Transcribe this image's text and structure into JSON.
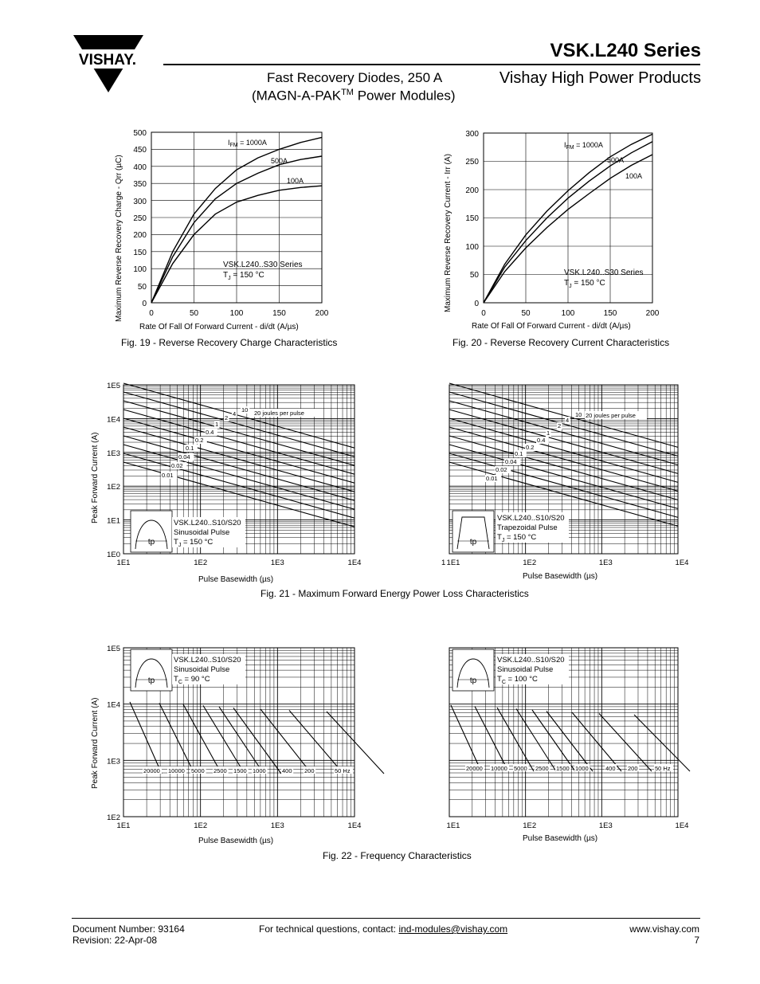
{
  "header": {
    "logo_text": "VISHAY.",
    "series_title": "VSK.L240 Series",
    "subtitle_line1": "Fast Recovery Diodes, 250 A",
    "subtitle_line2_pre": "(MAGN-A-PAK",
    "subtitle_tm": "TM",
    "subtitle_line2_post": " Power Modules)",
    "brand_products": "Vishay High Power Products"
  },
  "figures": {
    "fig19": {
      "caption": "Fig. 19 - Reverse Recovery Charge Characteristics",
      "ylabel": "Maximum Reverse Recovery Charge - Qrr (µC)",
      "xlabel": "Rate Of Fall Of Forward Current - di/dt (A/µs)",
      "note_line1": "VSK.L240..S30 Series",
      "note_line2_pre": "T",
      "note_line2_sub": "J",
      "note_line2_post": " = 150 °C",
      "curve_label_top_pre": "I",
      "curve_label_top_sub": "FM",
      "curve_label_top_post": " = 1000A",
      "curve_label_mid": "500A",
      "curve_label_low": "100A"
    },
    "fig20": {
      "caption": "Fig. 20 - Reverse Recovery Current Characteristics",
      "ylabel": "Maximum Reverse Recovery Current - Irr (A)",
      "xlabel": "Rate Of Fall Of Forward Current - di/dt (A/µs)",
      "note_line1": "VSK.L240..S30 Series",
      "note_line2_pre": "T",
      "note_line2_sub": "J",
      "note_line2_post": " = 150 °C",
      "curve_label_top_pre": "I",
      "curve_label_top_sub": "FM",
      "curve_label_top_post": " = 1000A",
      "curve_label_mid": "500A",
      "curve_label_low": "100A"
    },
    "fig21": {
      "caption": "Fig. 21 - Maximum Forward Energy Power Loss Characteristics",
      "ylabel": "Peak Forward Current (A)",
      "xlabel": "Pulse Basewidth (µs)",
      "left_note1": "VSK.L240..S10/S20",
      "left_note2": "Sinusoidal Pulse",
      "left_note3_pre": "T",
      "left_note3_sub": "J",
      "left_note3_post": " = 150 °C",
      "right_note1": "VSK.L240..S10/S20",
      "right_note2": "Trapezoidal Pulse",
      "right_note3_pre": "T",
      "right_note3_sub": "J",
      "right_note3_post": " = 150 °C",
      "pulse_label": "tp",
      "joules_label": "20 joules per pulse",
      "energy_labels": [
        "0.01",
        "0.02",
        "0.04",
        "0.1",
        "0.2",
        "0.4",
        "1",
        "2",
        "4",
        "10"
      ],
      "right_x_prefix": "1"
    },
    "fig22": {
      "caption": "Fig. 22 - Frequency Characteristics",
      "ylabel": "Peak Forward Current (A)",
      "xlabel": "Pulse Basewidth (µs)",
      "left_note1": "VSK.L240..S10/S20",
      "left_note2": "Sinusoidal Pulse",
      "left_note3_pre": "T",
      "left_note3_sub": "C",
      "left_note3_post": " = 90 °C",
      "right_note1": "VSK.L240..S10/S20",
      "right_note2": "Sinusoidal Pulse",
      "right_note3_pre": "T",
      "right_note3_sub": "C",
      "right_note3_post": " = 100 °C",
      "pulse_label": "tp",
      "freq_labels": [
        "20000",
        "10000",
        "5000",
        "2500",
        "1500",
        "1000",
        "400",
        "200",
        "50 Hz"
      ]
    }
  },
  "footer": {
    "doc_number": "Document Number: 93164",
    "revision": "Revision: 22-Apr-08",
    "contact_pre": "For technical questions, contact: ",
    "contact_email": "ind-modules@vishay.com",
    "website": "www.vishay.com",
    "page_number": "7"
  },
  "chart_data": [
    {
      "type": "line",
      "id": "fig19",
      "x": [
        0,
        25,
        50,
        75,
        100,
        125,
        150,
        175,
        200
      ],
      "series": [
        {
          "name": "I FM = 1000A",
          "values": [
            0,
            150,
            260,
            335,
            390,
            425,
            450,
            470,
            485
          ]
        },
        {
          "name": "500A",
          "values": [
            0,
            135,
            235,
            305,
            350,
            380,
            405,
            420,
            430
          ]
        },
        {
          "name": "100A",
          "values": [
            0,
            115,
            200,
            260,
            295,
            315,
            330,
            338,
            343
          ]
        }
      ],
      "xlim": [
        0,
        200
      ],
      "ylim": [
        0,
        500
      ],
      "x_ticks": [
        "0",
        "50",
        "100",
        "150",
        "200"
      ],
      "y_ticks": [
        "0",
        "50",
        "100",
        "150",
        "200",
        "250",
        "300",
        "350",
        "400",
        "450",
        "500"
      ]
    },
    {
      "type": "line",
      "id": "fig20",
      "x": [
        0,
        25,
        50,
        75,
        100,
        125,
        150,
        175,
        200
      ],
      "series": [
        {
          "name": "I FM = 1000A",
          "values": [
            0,
            68,
            120,
            162,
            198,
            230,
            258,
            280,
            298
          ]
        },
        {
          "name": "500A",
          "values": [
            0,
            63,
            110,
            150,
            185,
            215,
            242,
            265,
            285
          ]
        },
        {
          "name": "100A",
          "values": [
            0,
            55,
            97,
            133,
            165,
            193,
            220,
            243,
            262
          ]
        }
      ],
      "xlim": [
        0,
        200
      ],
      "ylim": [
        0,
        300
      ],
      "x_ticks": [
        "0",
        "50",
        "100",
        "150",
        "200"
      ],
      "y_ticks": [
        "0",
        "50",
        "100",
        "150",
        "200",
        "250",
        "300"
      ]
    },
    {
      "type": "line",
      "id": "fig21-left",
      "x_ticks": [
        "1E1",
        "1E2",
        "1E3",
        "1E4"
      ],
      "y_ticks": [
        "1E0",
        "1E1",
        "1E2",
        "1E3",
        "1E4",
        "1E5"
      ],
      "x_scale": "log",
      "y_scale": "log",
      "xlim": [
        10,
        10000
      ],
      "ylim": [
        1,
        100000
      ]
    },
    {
      "type": "line",
      "id": "fig21-right",
      "x_ticks": [
        "1E1",
        "1E2",
        "1E3",
        "1E4"
      ],
      "x_scale": "log",
      "y_scale": "log",
      "xlim": [
        10,
        10000
      ],
      "ylim": [
        1,
        100000
      ]
    },
    {
      "type": "line",
      "id": "fig22-left",
      "x_ticks": [
        "1E1",
        "1E2",
        "1E3",
        "1E4"
      ],
      "y_ticks": [
        "1E2",
        "1E3",
        "1E4",
        "1E5"
      ],
      "x_scale": "log",
      "y_scale": "log",
      "xlim": [
        10,
        10000
      ],
      "ylim": [
        100,
        100000
      ]
    },
    {
      "type": "line",
      "id": "fig22-right",
      "x_ticks": [
        "1E1",
        "1E2",
        "1E3",
        "1E4"
      ],
      "x_scale": "log",
      "y_scale": "log",
      "xlim": [
        10,
        10000
      ],
      "ylim": [
        100,
        100000
      ]
    }
  ]
}
